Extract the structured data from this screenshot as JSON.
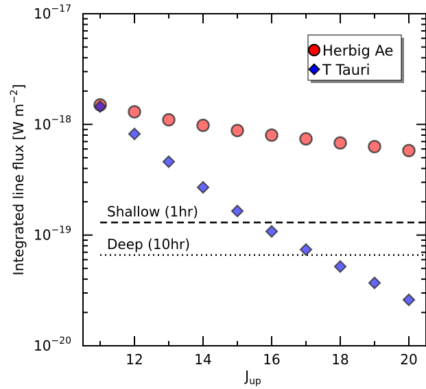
{
  "chart_data": {
    "type": "scatter",
    "xlabel": "J",
    "xlabel_sub": "up",
    "ylabel": "Integrated line flux [W m",
    "ylabel_sup": "−2",
    "ylabel_close": "]",
    "xlim": [
      10.5,
      20.5
    ],
    "ylim": [
      1e-20,
      1e-17
    ],
    "yscale": "log",
    "x_ticks": [
      12,
      14,
      16,
      18,
      20
    ],
    "y_ticks": [
      {
        "value": 1e-20,
        "base": "10",
        "exp": "−20"
      },
      {
        "value": 1e-19,
        "base": "10",
        "exp": "−19"
      },
      {
        "value": 1e-18,
        "base": "10",
        "exp": "−18"
      },
      {
        "value": 1e-17,
        "base": "10",
        "exp": "−17"
      }
    ],
    "x": [
      11,
      12,
      13,
      14,
      15,
      16,
      17,
      18,
      19,
      20
    ],
    "series": [
      {
        "name": "Herbig Ae",
        "marker": "circle",
        "color": "#ff0000",
        "values": [
          1.5e-18,
          1.3e-18,
          1.1e-18,
          9.8e-19,
          8.8e-19,
          8e-19,
          7.4e-19,
          6.8e-19,
          6.3e-19,
          5.8e-19
        ]
      },
      {
        "name": "T Tauri",
        "marker": "diamond",
        "color": "#0000ff",
        "values": [
          1.45e-18,
          8.2e-19,
          4.6e-19,
          2.7e-19,
          1.65e-19,
          1.08e-19,
          7.4e-20,
          5.2e-20,
          3.7e-20,
          2.6e-20
        ]
      }
    ],
    "hlines": [
      {
        "label": "Shallow (1hr)",
        "value": 1.3e-19,
        "style": "dashed"
      },
      {
        "label": "Deep (10hr)",
        "value": 6.6e-20,
        "style": "dotted"
      }
    ],
    "legend_position": "top-right",
    "grid": false
  }
}
